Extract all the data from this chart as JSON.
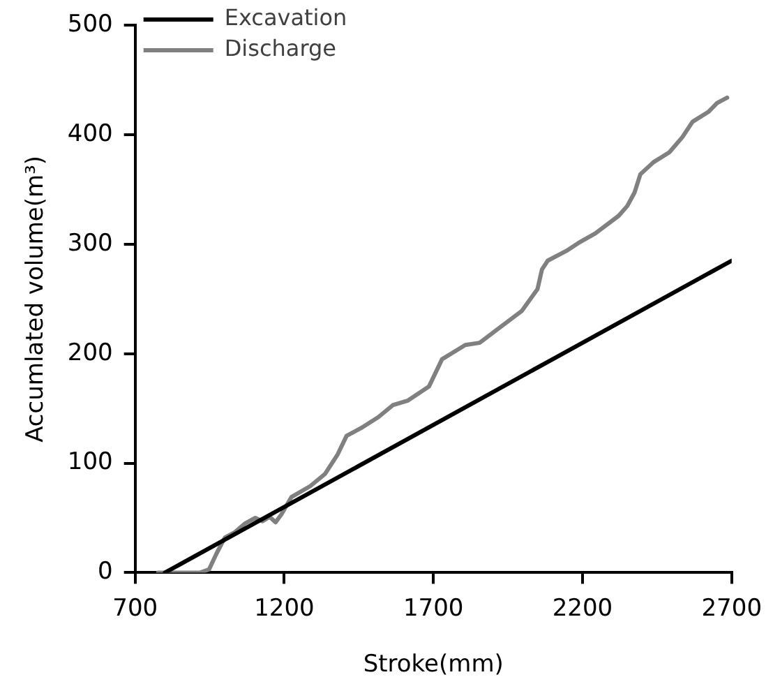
{
  "chart_data": {
    "type": "line",
    "xlabel": "Stroke(mm)",
    "ylabel": "Accumlated volume(m³)",
    "xlim": [
      700,
      2700
    ],
    "xticks": [
      700,
      1200,
      1700,
      2200,
      2700
    ],
    "ylim": [
      0,
      500
    ],
    "yticks": [
      0,
      100,
      200,
      300,
      400,
      500
    ],
    "grid": false,
    "legend": "top left",
    "marker": "none",
    "line_style": "solid",
    "series": [
      {
        "name": "Excavation",
        "color": "#000000",
        "x": [
          800,
          2700
        ],
        "values": [
          0,
          285
        ]
      },
      {
        "name": "Discharge",
        "color": "#808080",
        "x": [
          777,
          802,
          918,
          948,
          972,
          1001,
          1035,
          1069,
          1103,
          1127,
          1151,
          1171,
          1190,
          1224,
          1287,
          1336,
          1379,
          1409,
          1457,
          1515,
          1564,
          1613,
          1685,
          1729,
          1807,
          1855,
          1923,
          1996,
          2049,
          2064,
          2083,
          2146,
          2185,
          2243,
          2321,
          2350,
          2374,
          2394,
          2438,
          2491,
          2535,
          2569,
          2622,
          2651,
          2685
        ],
        "values": [
          0,
          0,
          0,
          3,
          17,
          32,
          37,
          45,
          50,
          47,
          51,
          46,
          53,
          69,
          79,
          90,
          108,
          125,
          132,
          142,
          153,
          157,
          170,
          195,
          208,
          210,
          224,
          239,
          259,
          277,
          285,
          294,
          301,
          310,
          326,
          335,
          347,
          364,
          375,
          384,
          398,
          412,
          421,
          429,
          434
        ]
      }
    ]
  }
}
